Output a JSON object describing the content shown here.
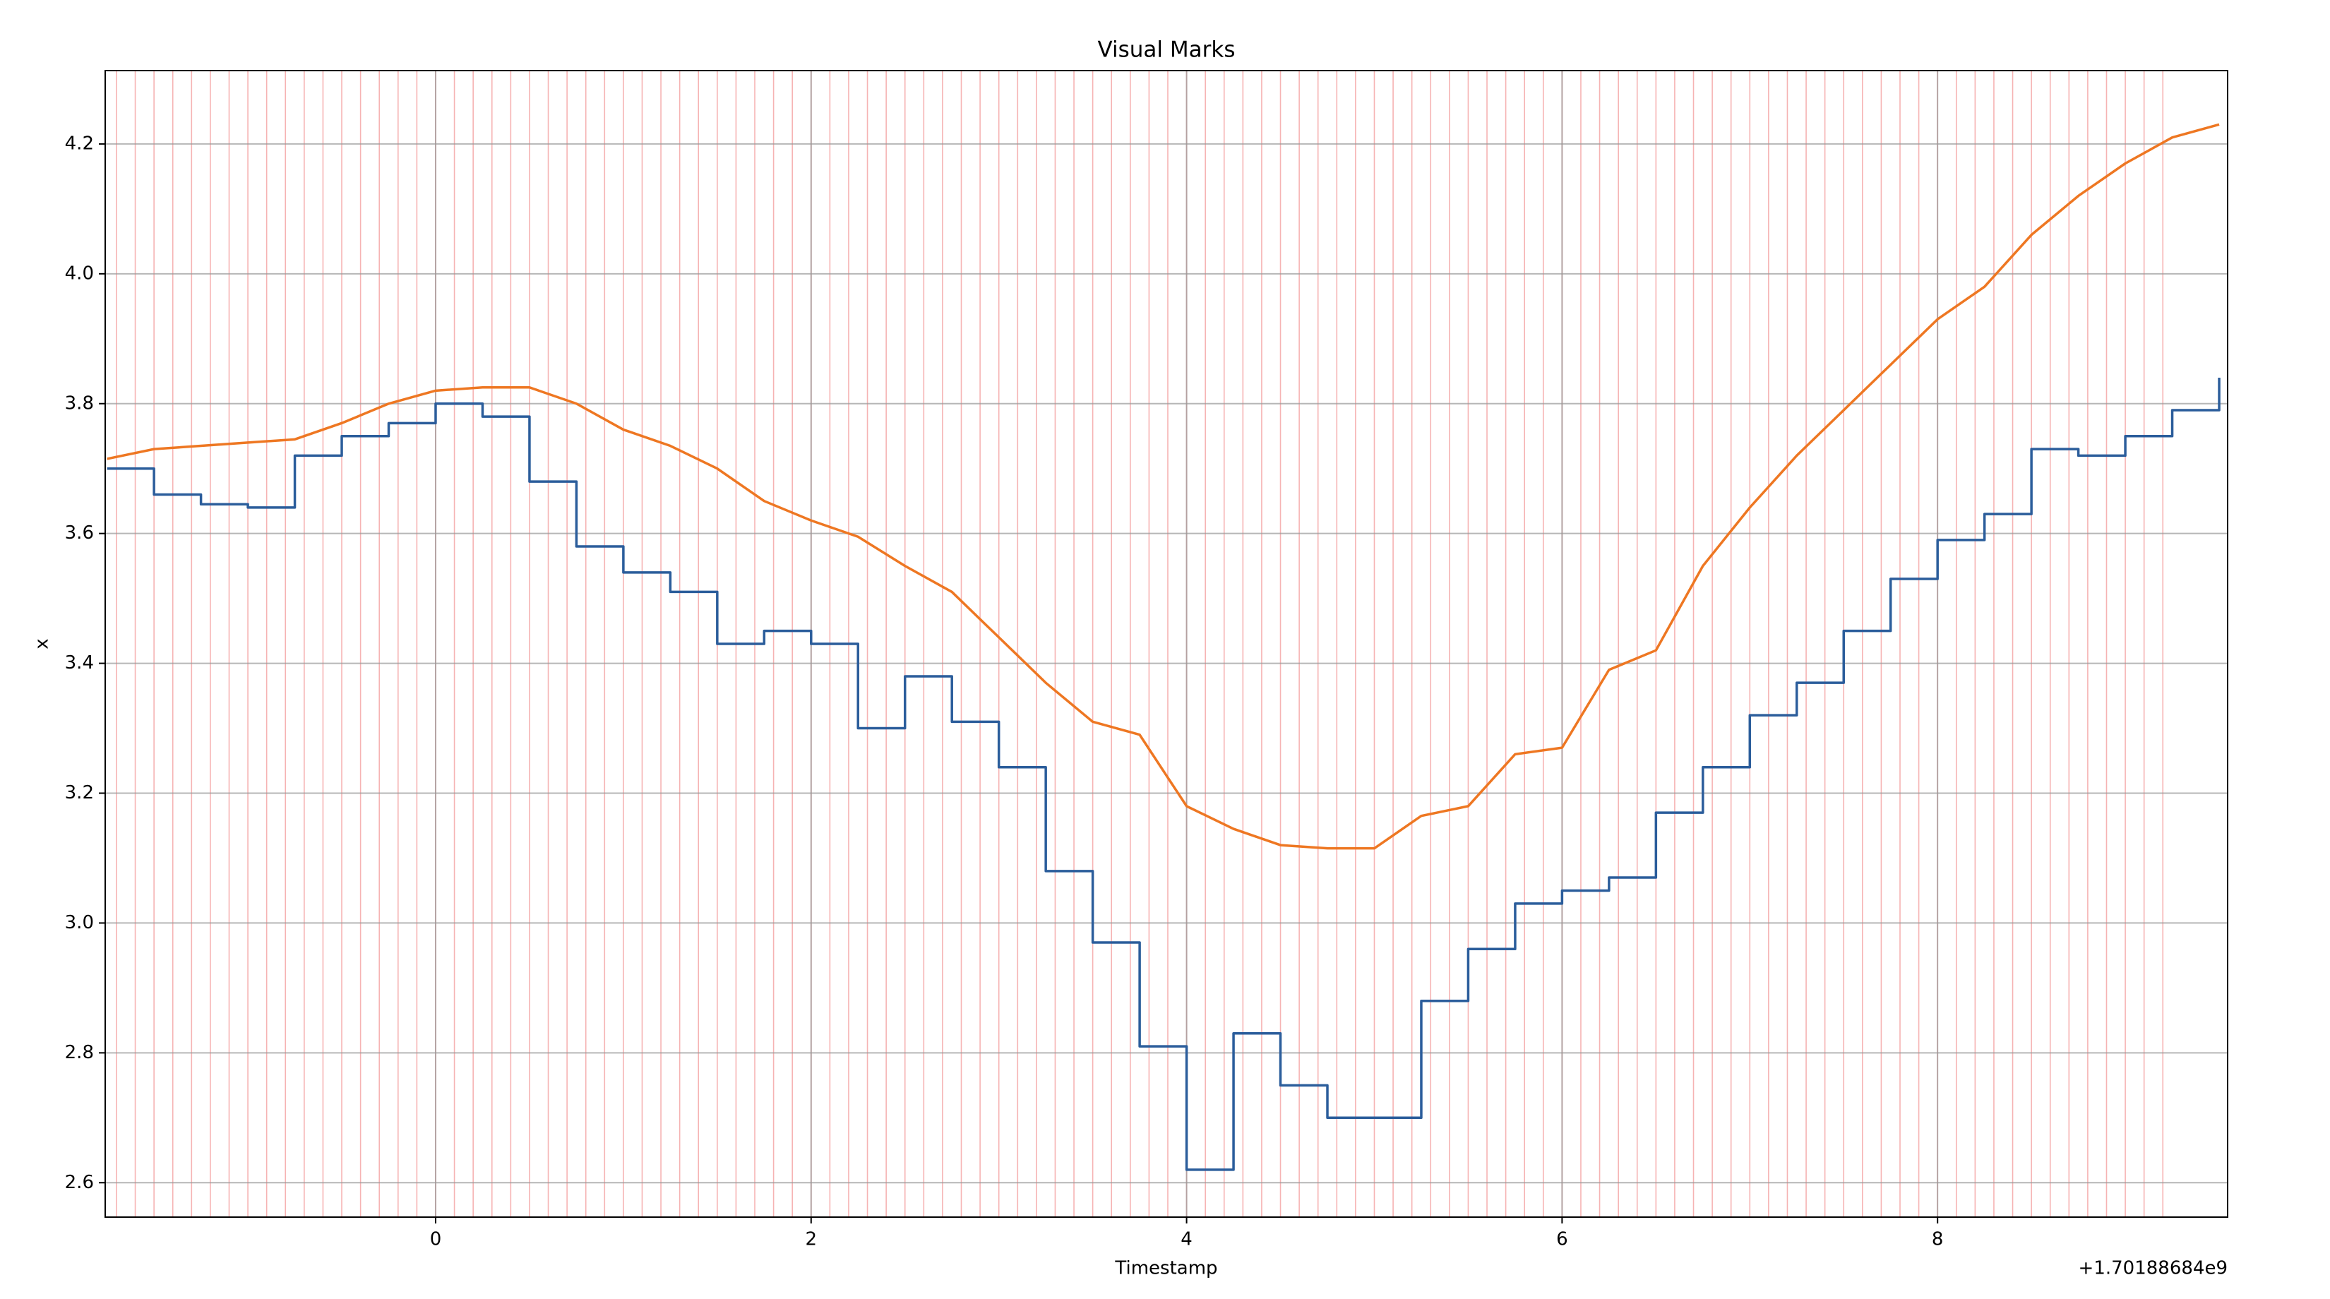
{
  "chart_data": {
    "type": "line",
    "title": "Visual Marks",
    "xlabel": "Timestamp",
    "ylabel": "x",
    "x_offset_label": "+1.70188684e9",
    "x": [
      -1.75,
      -1.5,
      -1.25,
      -1.0,
      -0.75,
      -0.5,
      -0.25,
      0,
      0.25,
      0.5,
      0.75,
      1.0,
      1.25,
      1.5,
      1.75,
      2.0,
      2.25,
      2.5,
      2.75,
      3.0,
      3.25,
      3.5,
      3.75,
      4.0,
      4.25,
      4.5,
      4.75,
      5.0,
      5.25,
      5.5,
      5.75,
      6.0,
      6.25,
      6.5,
      6.75,
      7.0,
      7.25,
      7.5,
      7.75,
      8.0,
      8.25,
      8.5,
      8.75,
      9.0,
      9.25,
      9.5
    ],
    "series": [
      {
        "color": "#2b5d9b",
        "step": true,
        "values": [
          3.7,
          3.66,
          3.645,
          3.64,
          3.72,
          3.75,
          3.77,
          3.8,
          3.78,
          3.68,
          3.58,
          3.54,
          3.51,
          3.43,
          3.45,
          3.43,
          3.3,
          3.38,
          3.31,
          3.24,
          3.08,
          2.97,
          2.81,
          2.62,
          2.83,
          2.75,
          2.7,
          2.7,
          2.88,
          2.96,
          3.03,
          3.05,
          3.07,
          3.17,
          3.24,
          3.32,
          3.37,
          3.45,
          3.53,
          3.59,
          3.63,
          3.73,
          3.72,
          3.75,
          3.79,
          3.84
        ]
      },
      {
        "color": "#ee7722",
        "step": false,
        "values": [
          3.715,
          3.73,
          3.735,
          3.74,
          3.745,
          3.77,
          3.8,
          3.82,
          3.825,
          3.825,
          3.8,
          3.76,
          3.735,
          3.7,
          3.65,
          3.62,
          3.595,
          3.55,
          3.51,
          3.44,
          3.37,
          3.31,
          3.29,
          3.18,
          3.145,
          3.12,
          3.115,
          3.115,
          3.165,
          3.18,
          3.26,
          3.27,
          3.39,
          3.42,
          3.55,
          3.64,
          3.72,
          3.79,
          3.86,
          3.93,
          3.98,
          4.06,
          4.12,
          4.17,
          4.21,
          4.23
        ]
      }
    ],
    "mark_color": "#f08080",
    "marks": [
      -1.7,
      -1.6,
      -1.5,
      -1.4,
      -1.3,
      -1.2,
      -1.1,
      -1.0,
      -0.9,
      -0.8,
      -0.7,
      -0.6,
      -0.5,
      -0.4,
      -0.3,
      -0.2,
      -0.1,
      0.0,
      0.1,
      0.2,
      0.3,
      0.4,
      0.5,
      0.6,
      0.7,
      0.8,
      0.9,
      1.0,
      1.1,
      1.2,
      1.3,
      1.4,
      1.5,
      1.6,
      1.7,
      1.8,
      1.9,
      2.0,
      2.1,
      2.2,
      2.3,
      2.4,
      2.5,
      2.6,
      2.7,
      2.8,
      2.9,
      3.0,
      3.1,
      3.2,
      3.3,
      3.4,
      3.5,
      3.6,
      3.7,
      3.8,
      3.9,
      4.0,
      4.1,
      4.2,
      4.3,
      4.4,
      4.5,
      4.6,
      4.7,
      4.8,
      4.9,
      5.0,
      5.1,
      5.2,
      5.3,
      5.4,
      5.5,
      5.6,
      5.7,
      5.8,
      5.9,
      6.0,
      6.1,
      6.2,
      6.3,
      6.4,
      6.5,
      6.6,
      6.7,
      6.8,
      6.9,
      7.0,
      7.1,
      7.2,
      7.3,
      7.4,
      7.5,
      7.6,
      7.7,
      7.8,
      7.9,
      8.0,
      8.1,
      8.2,
      8.3,
      8.4,
      8.5,
      8.6,
      8.7,
      8.8,
      8.9,
      9.0,
      9.1,
      9.2
    ],
    "xlim": [
      -1.76,
      9.545
    ],
    "ylim": [
      2.547,
      4.313
    ],
    "xticks": [
      0,
      2,
      4,
      6,
      8
    ],
    "yticks": [
      2.6,
      2.8,
      {
        "value": 3,
        "label": "3.0"
      },
      3.2,
      3.4,
      3.6,
      3.8,
      {
        "value": 4,
        "label": "4.0"
      },
      4.2
    ],
    "grid": true
  }
}
